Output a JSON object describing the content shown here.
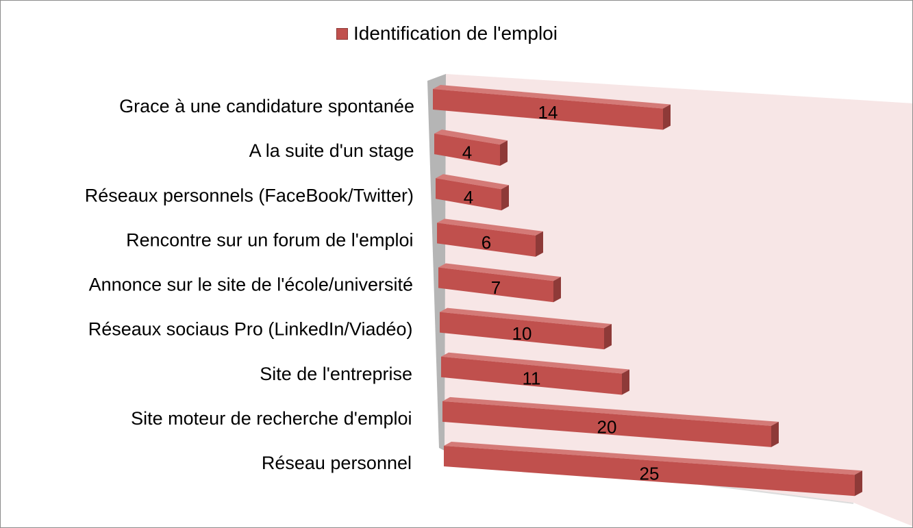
{
  "chart_data": {
    "type": "bar",
    "orientation": "horizontal",
    "style": "3d",
    "legend": {
      "position": "top",
      "label": "Identification de l'emploi"
    },
    "categories": [
      "Grace à une candidature spontanée",
      "A la suite d'un stage",
      "Réseaux personnels (FaceBook/Twitter)",
      "Rencontre sur un forum de l'emploi",
      "Annonce sur le site de l'école/université",
      "Réseaux sociaus Pro (LinkedIn/Viadéo)",
      "Site de l'entreprise",
      "Site moteur de recherche d'emploi",
      "Réseau personnel"
    ],
    "series": [
      {
        "name": "Identification de l'emploi",
        "values": [
          14,
          4,
          4,
          6,
          7,
          10,
          11,
          20,
          25
        ]
      }
    ],
    "data_labels": true,
    "gridlines": false,
    "colors": {
      "bar_front": "#c0504d",
      "bar_top": "#d47a77",
      "bar_side": "#8e3a38",
      "back_wall": "#f7e6e6",
      "side_wall": "#b5b5b5",
      "floor": "#d8d8d8"
    }
  }
}
